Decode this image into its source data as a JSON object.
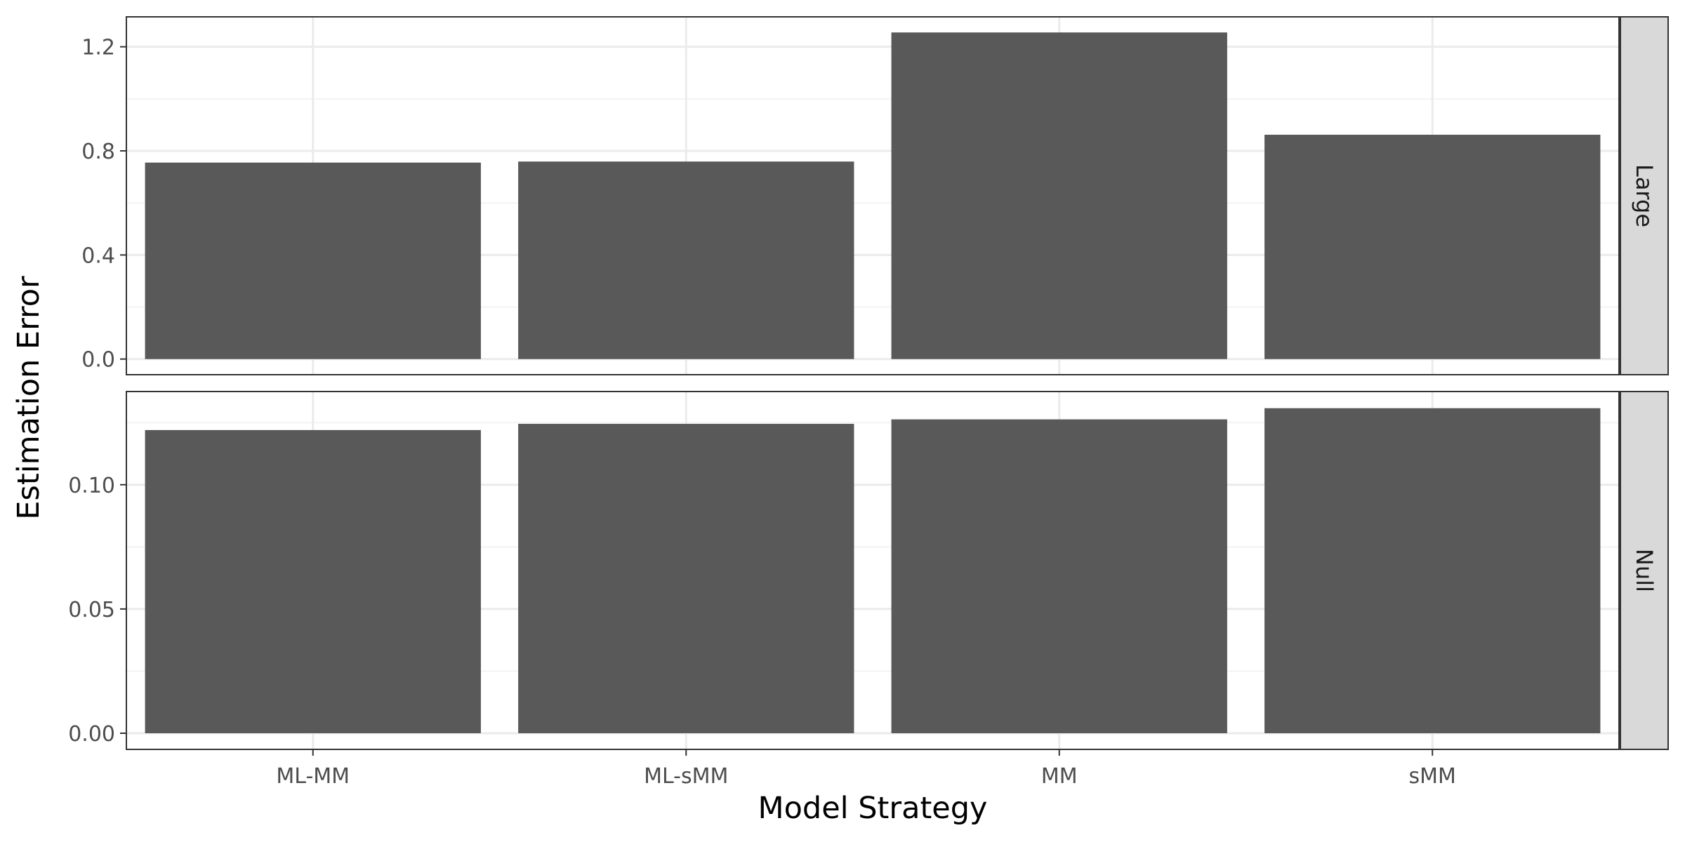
{
  "chart_data": {
    "type": "bar",
    "layout": "faceted-rows",
    "xlabel": "Model Strategy",
    "ylabel": "Estimation Error",
    "categories": [
      "ML-MM",
      "ML-sMM",
      "MM",
      "sMM"
    ],
    "bar_color": "#595959",
    "grid": true,
    "facet_scales": "free_y",
    "facets": [
      {
        "label": "Large",
        "values": [
          0.755,
          0.759,
          1.255,
          0.862
        ],
        "ylim": [
          -0.06,
          1.315
        ],
        "yticks": [
          0.0,
          0.4,
          0.8,
          1.2
        ],
        "ytick_labels": [
          "0.0",
          "0.4",
          "0.8",
          "1.2"
        ],
        "yminor": [
          0.2,
          0.6,
          1.0
        ]
      },
      {
        "label": "Null",
        "values": [
          0.122,
          0.1245,
          0.1263,
          0.1308
        ],
        "ylim": [
          -0.0065,
          0.1375
        ],
        "yticks": [
          0.0,
          0.05,
          0.1
        ],
        "ytick_labels": [
          "0.00",
          "0.05",
          "0.10"
        ],
        "yminor": [
          0.025,
          0.075,
          0.125
        ]
      }
    ]
  },
  "colors": {
    "panel_border": "#333333",
    "grid_major": "#ebebeb",
    "grid_minor": "#f3f3f3",
    "strip_fill": "#d9d9d9",
    "tick_text": "#4d4d4d"
  }
}
